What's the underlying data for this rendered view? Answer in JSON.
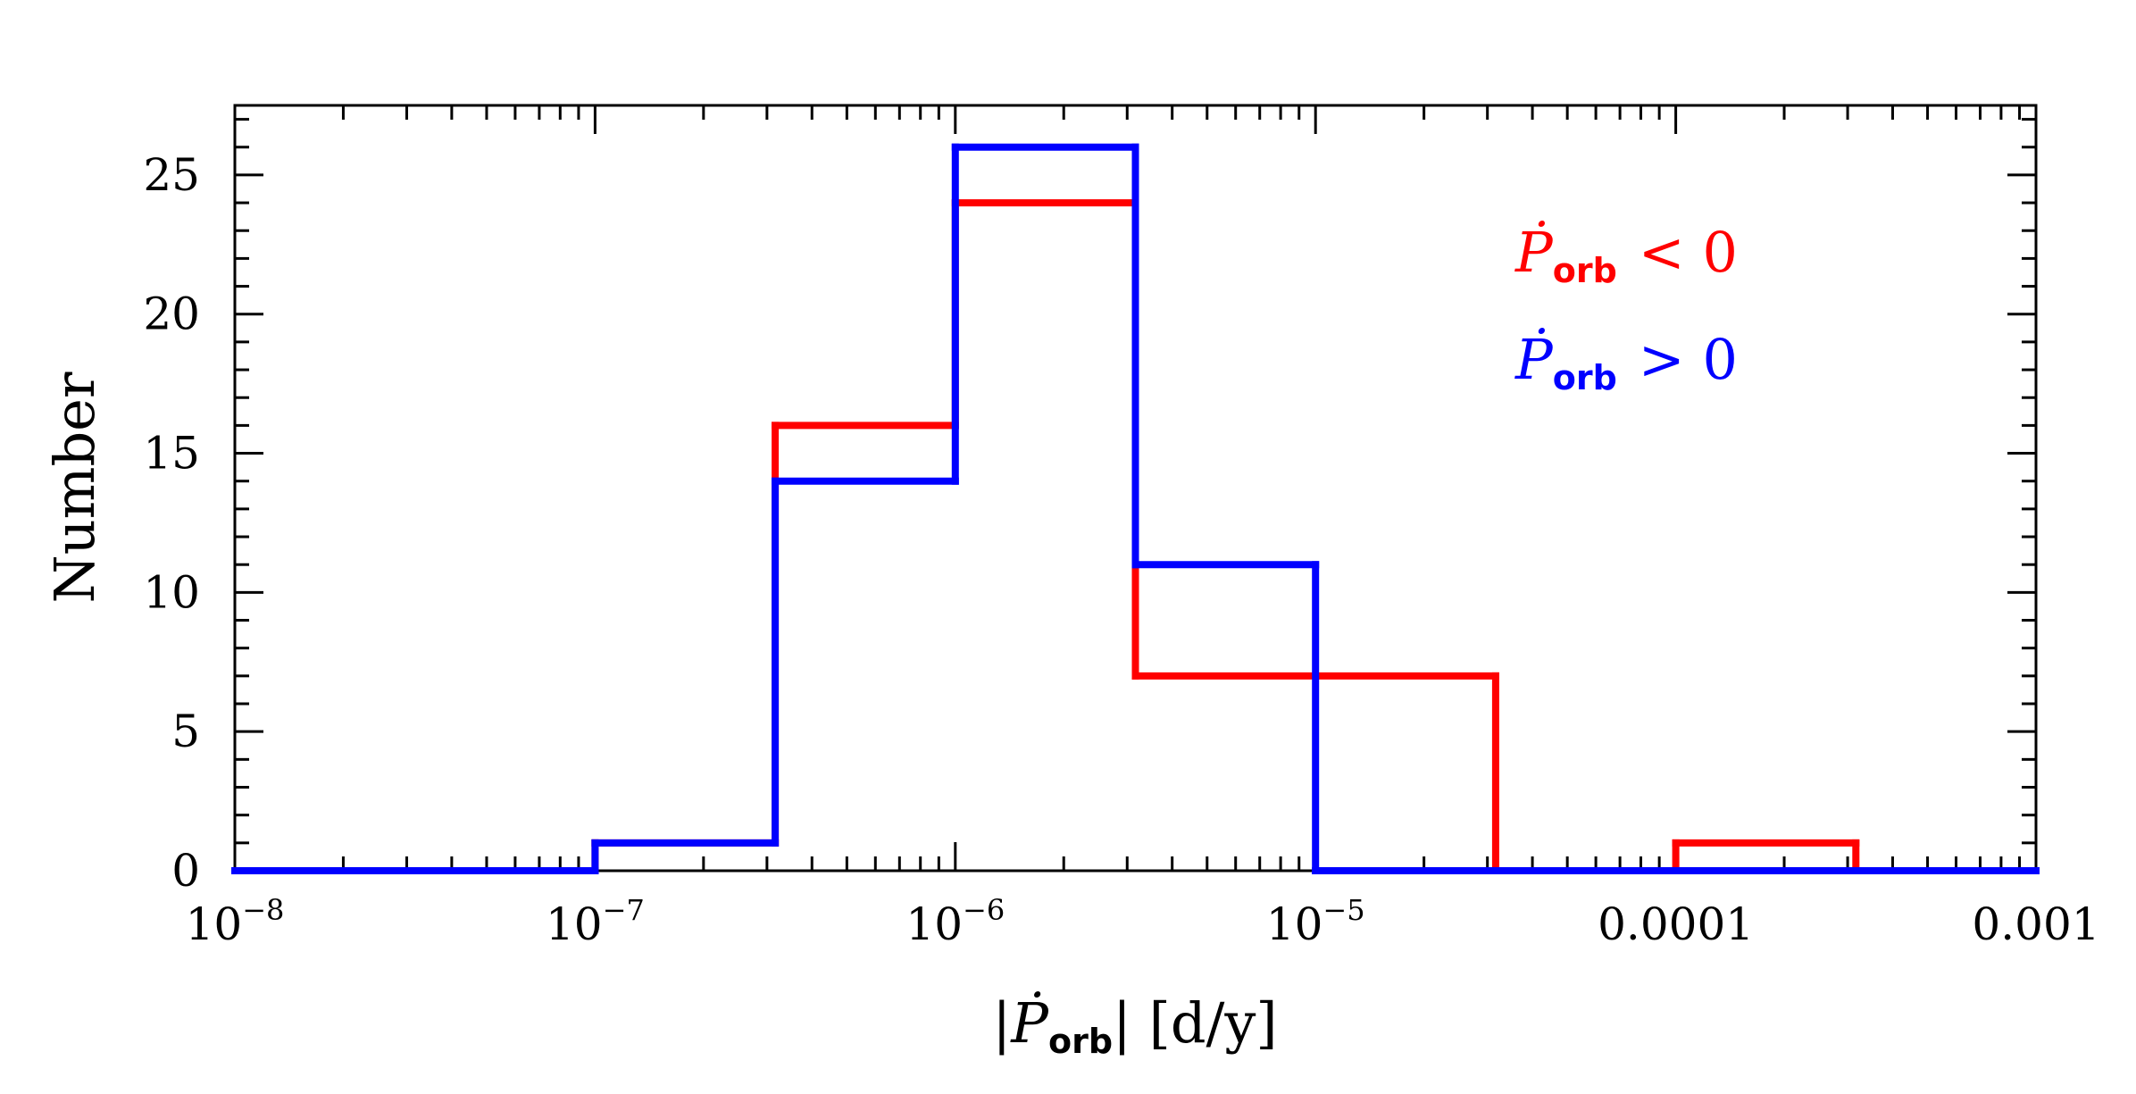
{
  "chart_data": {
    "type": "histogram",
    "xscale": "log",
    "xlim": [
      1e-08,
      0.001
    ],
    "ylim": [
      0,
      27.5
    ],
    "xlabel": {
      "text": "|Ṗ",
      "sub": "orb",
      "unit": "| [d/y]"
    },
    "ylabel": "Number",
    "x_ticks": [
      {
        "base": "10",
        "exp": "−8",
        "value": 1e-08
      },
      {
        "base": "10",
        "exp": "−7",
        "value": 1e-07
      },
      {
        "base": "10",
        "exp": "−6",
        "value": 1e-06
      },
      {
        "base": "10",
        "exp": "−5",
        "value": 1e-05
      },
      {
        "base": "0.0001",
        "exp": "",
        "value": 0.0001
      },
      {
        "base": "0.001",
        "exp": "",
        "value": 0.001
      }
    ],
    "y_ticks": [
      "0",
      "5",
      "10",
      "15",
      "20",
      "25"
    ],
    "bin_edges": [
      1e-08,
      3.1623e-08,
      1e-07,
      3.1623e-07,
      1e-06,
      3.1623e-06,
      1e-05,
      3.1623e-05,
      0.0001,
      0.00031623,
      0.001
    ],
    "series": [
      {
        "legend": {
          "symbol": "Ṗ",
          "sub": "orb",
          "relation": "< 0"
        },
        "color": "#ff0000",
        "counts": [
          0,
          0,
          1,
          16,
          24,
          7,
          7,
          0,
          1,
          0
        ]
      },
      {
        "legend": {
          "symbol": "Ṗ",
          "sub": "orb",
          "relation": "> 0"
        },
        "color": "#0000ff",
        "counts": [
          0,
          0,
          1,
          14,
          26,
          11,
          0,
          0,
          0,
          0
        ]
      }
    ],
    "legend_position": "top-right"
  }
}
